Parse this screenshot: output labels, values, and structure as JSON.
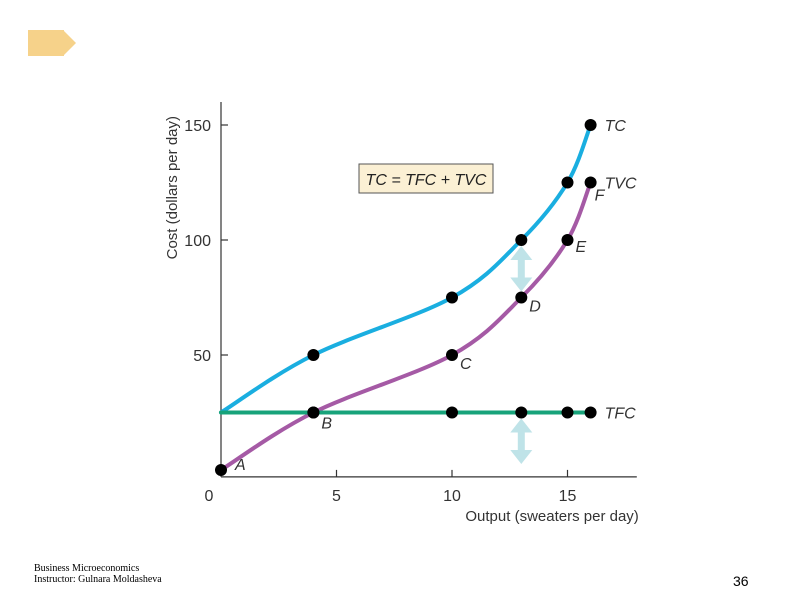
{
  "decoration": {
    "logo_color": "#f6d28a"
  },
  "footer": {
    "line1": "Business Microeconomics",
    "line2": "Instructor: Gulnara Moldasheva"
  },
  "page_number": "36",
  "chart_data": {
    "type": "line",
    "xlabel": "Output (sweaters per day)",
    "ylabel": "Cost (dollars per day)",
    "xlim": [
      0,
      18
    ],
    "ylim": [
      -3,
      160
    ],
    "x_ticks": [
      0,
      5,
      10,
      15
    ],
    "y_ticks": [
      50,
      100,
      150
    ],
    "annotation": "TC = TFC + TVC",
    "colors": {
      "TC": "#1aaee0",
      "TVC": "#a55aa5",
      "TFC": "#17a37a",
      "arrow": "#bfe3e8",
      "box_fill": "#fbf0d4"
    },
    "series": [
      {
        "name": "TC",
        "points": [
          [
            0,
            25
          ],
          [
            4,
            50
          ],
          [
            10,
            75
          ],
          [
            13,
            100
          ],
          [
            15,
            125
          ],
          [
            16,
            150
          ]
        ],
        "markers": [
          [
            4,
            50
          ],
          [
            10,
            75
          ],
          [
            13,
            100
          ],
          [
            15,
            125
          ],
          [
            16,
            150
          ]
        ]
      },
      {
        "name": "TVC",
        "points": [
          [
            0,
            0
          ],
          [
            4,
            25
          ],
          [
            10,
            50
          ],
          [
            13,
            75
          ],
          [
            15,
            100
          ],
          [
            16,
            125
          ]
        ],
        "markers": [
          [
            0,
            0
          ],
          [
            4,
            25
          ],
          [
            10,
            50
          ],
          [
            13,
            75
          ],
          [
            15,
            100
          ],
          [
            16,
            125
          ]
        ]
      },
      {
        "name": "TFC",
        "points": [
          [
            0,
            25
          ],
          [
            16,
            25
          ]
        ],
        "markers": [
          [
            4,
            25
          ],
          [
            10,
            25
          ],
          [
            13,
            25
          ],
          [
            15,
            25
          ],
          [
            16,
            25
          ]
        ]
      }
    ],
    "point_labels": [
      {
        "text": "A",
        "x": 0,
        "y": 0
      },
      {
        "text": "B",
        "x": 4,
        "y": 25
      },
      {
        "text": "C",
        "x": 10,
        "y": 50
      },
      {
        "text": "D",
        "x": 13,
        "y": 75
      },
      {
        "text": "E",
        "x": 15,
        "y": 100
      },
      {
        "text": "F",
        "x": 16,
        "y": 125
      }
    ],
    "arrows": [
      {
        "x": 13,
        "y1": 75,
        "y2": 100
      },
      {
        "x": 13,
        "y1": 0,
        "y2": 25
      }
    ]
  }
}
